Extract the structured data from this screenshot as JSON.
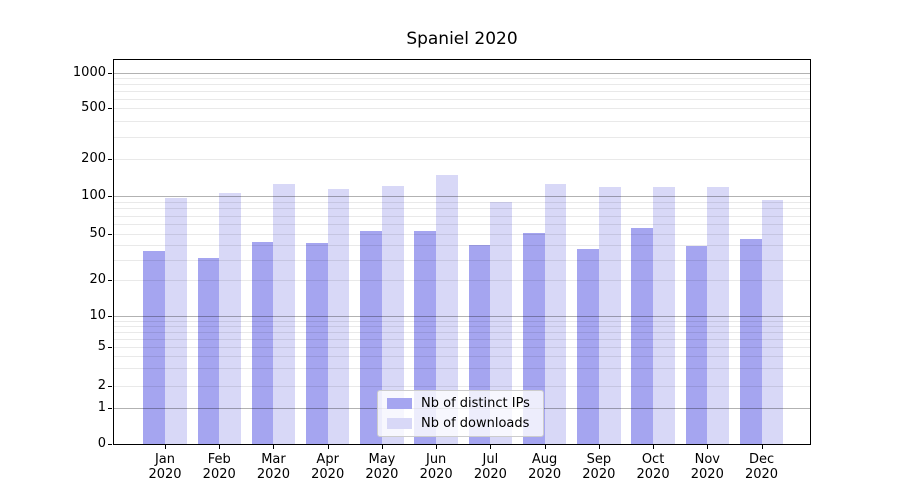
{
  "colors": {
    "ips": "#a5a5f0",
    "downloads": "#d8d8f7",
    "grid_major": "rgba(0,0,0,0.30)",
    "grid_minor": "rgba(0,0,0,0.085)",
    "spine": "#000000",
    "legend_border": "#cccccc",
    "legend_bg": "rgba(255,255,255,0.8)"
  },
  "legend": {
    "items": [
      {
        "label": "Nb of distinct IPs",
        "series": "ips"
      },
      {
        "label": "Nb of downloads",
        "series": "downloads"
      }
    ]
  },
  "chart_data": {
    "type": "bar",
    "title": "Spaniel 2020",
    "categories": [
      "Jan 2020",
      "Feb 2020",
      "Mar 2020",
      "Apr 2020",
      "May 2020",
      "Jun 2020",
      "Jul 2020",
      "Aug 2020",
      "Sep 2020",
      "Oct 2020",
      "Nov 2020",
      "Dec 2020"
    ],
    "x_tick_months": [
      "Jan",
      "Feb",
      "Mar",
      "Apr",
      "May",
      "Jun",
      "Jul",
      "Aug",
      "Sep",
      "Oct",
      "Nov",
      "Dec"
    ],
    "x_tick_year": "2020",
    "series": [
      {
        "name": "Nb of distinct IPs",
        "color": "#a5a5f0",
        "values": [
          36,
          31,
          43,
          42,
          53,
          53,
          40,
          51,
          37,
          56,
          39,
          45
        ]
      },
      {
        "name": "Nb of downloads",
        "color": "#d8d8f7",
        "values": [
          96,
          105,
          125,
          115,
          120,
          150,
          90,
          126,
          119,
          119,
          119,
          93
        ]
      }
    ],
    "yticks": [
      0,
      1,
      2,
      5,
      10,
      20,
      50,
      100,
      200,
      500,
      1000
    ],
    "yscale": "symlog (log decades 1-1000, linear segment 0-1)",
    "ylim": [
      0,
      1300
    ],
    "xlabel": "",
    "ylabel": "",
    "grid": "on (gray major decade lines + faint minor log lines, drawn over bars)",
    "legend_position": "lower center inside plot"
  }
}
